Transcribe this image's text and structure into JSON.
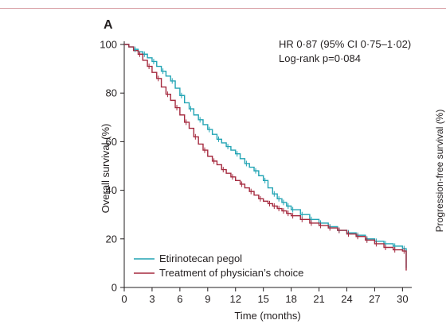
{
  "chart_data": {
    "type": "line",
    "panel_label": "A",
    "title": "",
    "xlabel": "Time (months)",
    "ylabel": "Overall survival (%)",
    "xlim": [
      0,
      31
    ],
    "ylim": [
      0,
      100
    ],
    "x_ticks": [
      0,
      3,
      6,
      9,
      12,
      15,
      18,
      21,
      24,
      27,
      30
    ],
    "y_ticks": [
      0,
      20,
      40,
      60,
      80,
      100
    ],
    "grid": false,
    "legend_position": "bottom-left",
    "annotations": [
      "HR 0·87 (95% CI 0·75–1·02)",
      "Log-rank p=0·084"
    ],
    "clipped_right_axis_label": "Progression-free survival (%)",
    "series": [
      {
        "name": "Etirinotecan pegol",
        "color": "#22a4b4",
        "x": [
          0,
          0.5,
          1,
          1.5,
          2,
          2.5,
          3,
          3.5,
          4,
          4.5,
          5,
          5.5,
          6,
          6.5,
          7,
          7.5,
          8,
          8.5,
          9,
          9.5,
          10,
          10.5,
          11,
          11.5,
          12,
          12.5,
          13,
          13.5,
          14,
          14.5,
          15,
          15.5,
          16,
          16.5,
          17,
          17.5,
          18,
          19,
          20,
          21,
          22,
          23,
          24,
          25,
          26,
          27,
          28,
          29,
          30,
          30.4,
          30.4
        ],
        "y": [
          100,
          99,
          98,
          97,
          96,
          94.5,
          93,
          91,
          89,
          87,
          85,
          82,
          79,
          76,
          73.5,
          71,
          69,
          67,
          65,
          63,
          61,
          59.5,
          58,
          56.5,
          55,
          53,
          51,
          49.5,
          48,
          46,
          44,
          41,
          38.5,
          36.5,
          35,
          33.5,
          32,
          30,
          28,
          26.5,
          25,
          23.5,
          22.5,
          21.5,
          20,
          19,
          18,
          17,
          16,
          16,
          8
        ]
      },
      {
        "name": "Treatment of physician’s choice",
        "color": "#a52a3f",
        "x": [
          0,
          0.5,
          1,
          1.5,
          2,
          2.5,
          3,
          3.5,
          4,
          4.5,
          5,
          5.5,
          6,
          6.5,
          7,
          7.5,
          8,
          8.5,
          9,
          9.5,
          10,
          10.5,
          11,
          11.5,
          12,
          12.5,
          13,
          13.5,
          14,
          14.5,
          15,
          15.5,
          16,
          16.5,
          17,
          17.5,
          18,
          19,
          20,
          21,
          22,
          23,
          24,
          25,
          26,
          27,
          28,
          29,
          30,
          30.4,
          30.4
        ],
        "y": [
          100,
          99,
          97.5,
          96,
          93.5,
          91,
          88.5,
          86,
          82.5,
          79.5,
          77,
          74,
          71,
          68,
          65.5,
          62,
          59,
          56.5,
          54,
          52,
          50.5,
          48.5,
          47,
          45.5,
          44,
          42.5,
          41,
          39.5,
          38,
          36.5,
          35.5,
          34.5,
          33.5,
          32.5,
          31.5,
          30.5,
          29.5,
          28,
          26.5,
          25.5,
          24.5,
          23.5,
          22,
          21,
          19.5,
          18,
          16.5,
          15.5,
          15,
          15,
          7
        ]
      }
    ]
  }
}
